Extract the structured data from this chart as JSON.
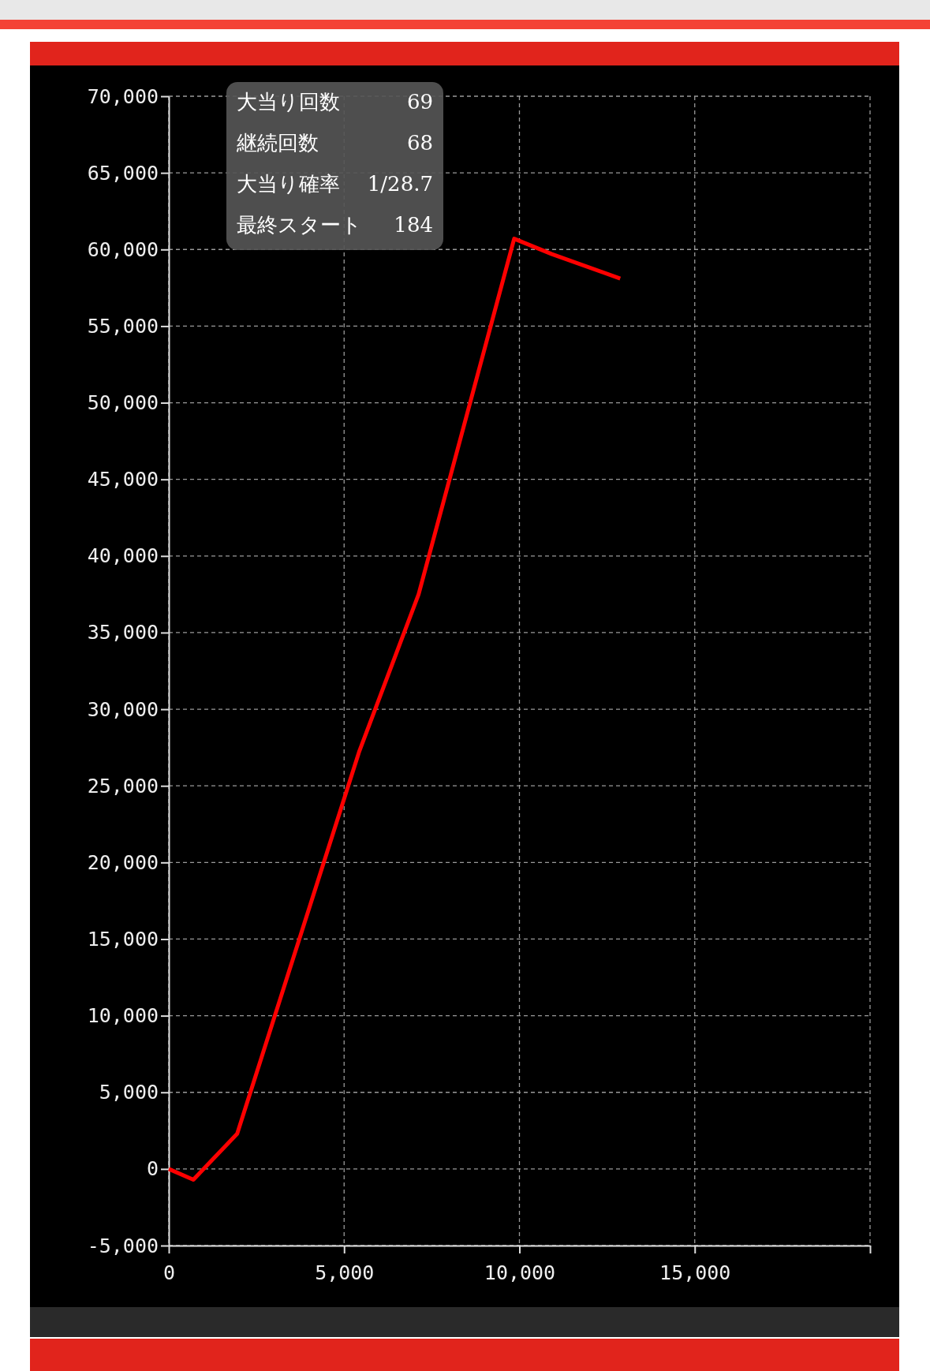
{
  "chart_data": {
    "type": "line",
    "x": [
      0,
      700,
      1950,
      5425,
      7125,
      9850,
      10925,
      12875
    ],
    "series": [
      {
        "color": "#ff0000",
        "values": [
          0,
          -700,
          2300,
          27200,
          37500,
          60700,
          59700,
          58100
        ]
      }
    ],
    "xlim": [
      0,
      20000
    ],
    "xticks": [
      0,
      {
        "value": 5000,
        "label": "5,000"
      },
      {
        "value": 10000,
        "label": "10,000"
      },
      {
        "value": 15000,
        "label": "15,000"
      },
      {
        "value": 20000,
        "label": null
      }
    ],
    "ylim": [
      -5000,
      70000
    ],
    "yticks": [
      {
        "value": -5000,
        "label": "-5,000"
      },
      0,
      {
        "value": 5000,
        "label": "5,000"
      },
      {
        "value": 10000,
        "label": "10,000"
      },
      {
        "value": 15000,
        "label": "15,000"
      },
      {
        "value": 20000,
        "label": "20,000"
      },
      {
        "value": 25000,
        "label": "25,000"
      },
      {
        "value": 30000,
        "label": "30,000"
      },
      {
        "value": 35000,
        "label": "35,000"
      },
      {
        "value": 40000,
        "label": "40,000"
      },
      {
        "value": 45000,
        "label": "45,000"
      },
      {
        "value": 50000,
        "label": "50,000"
      },
      {
        "value": 55000,
        "label": "55,000"
      },
      {
        "value": 60000,
        "label": "60,000"
      },
      {
        "value": 65000,
        "label": "65,000"
      },
      {
        "value": 70000,
        "label": "70,000"
      }
    ],
    "grid": true,
    "line_style": "solid",
    "marker": "none",
    "annotations": [
      "大当り回数",
      "69",
      "継続回数",
      "68",
      "大当り確率",
      "1/28.7",
      "最終スタート",
      "184"
    ]
  }
}
